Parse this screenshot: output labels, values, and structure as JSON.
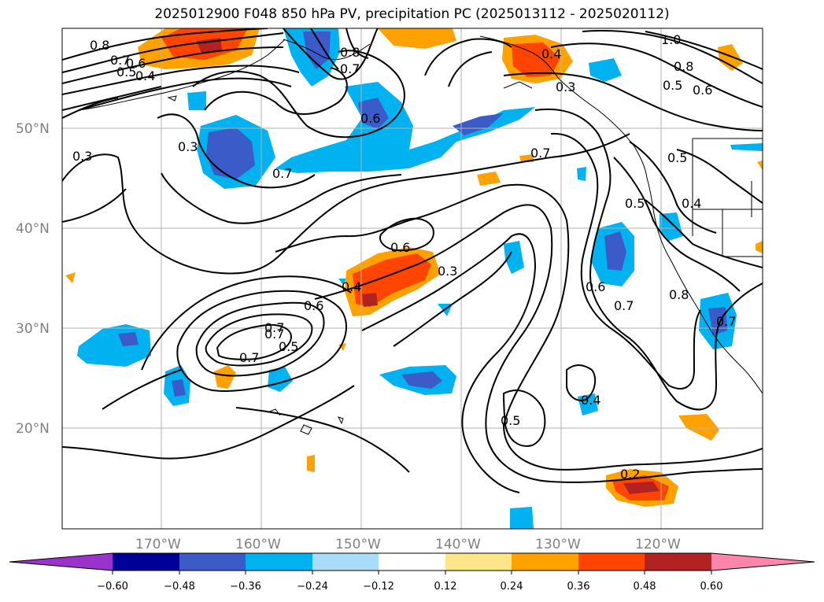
{
  "title": "2025012900 F048 850 hPa PV, precipitation PC (2025013112 - 2025020112)",
  "colors": {
    "neg_060": "#9933cc",
    "neg_048": "#000099",
    "neg_036": "#3a5bc8",
    "neg_024": "#00b3f0",
    "neg_012": "#a8dcf8",
    "zero": "#ffffff",
    "pos_012": "#fde68a",
    "pos_024": "#ffa200",
    "pos_036": "#ff4500",
    "pos_048": "#b22222",
    "pos_060": "#ff85ad",
    "coast": "#000000",
    "grid": "#b0b0b0",
    "contour": "#000000"
  },
  "lat_labels": [
    "50°N",
    "40°N",
    "30°N",
    "20°N"
  ],
  "lon_labels": [
    "170°W",
    "160°W",
    "150°W",
    "140°W",
    "130°W",
    "120°W"
  ],
  "colorbar": {
    "ticks": [
      "−0.60",
      "−0.48",
      "−0.36",
      "−0.24",
      "−0.12",
      "0.12",
      "0.24",
      "0.36",
      "0.48",
      "0.60"
    ]
  },
  "contour_labels": [
    "0.8",
    "0.7",
    "0.6",
    "0.5",
    "0.4",
    "0.8",
    "0.7",
    "0.4",
    "0.3",
    "1.0",
    "0.8",
    "0.5",
    "0.6",
    "0.3",
    "0.3",
    "0.7",
    "0.6",
    "0.7",
    "0.5",
    "0.4",
    "0.5",
    "0.6",
    "0.3",
    "0.4",
    "0.6",
    "0.7",
    "0.7",
    "0.5",
    "0.7",
    "0.6",
    "0.7",
    "0.8",
    "0.4",
    "0.5",
    "0.2",
    "0.7"
  ]
}
